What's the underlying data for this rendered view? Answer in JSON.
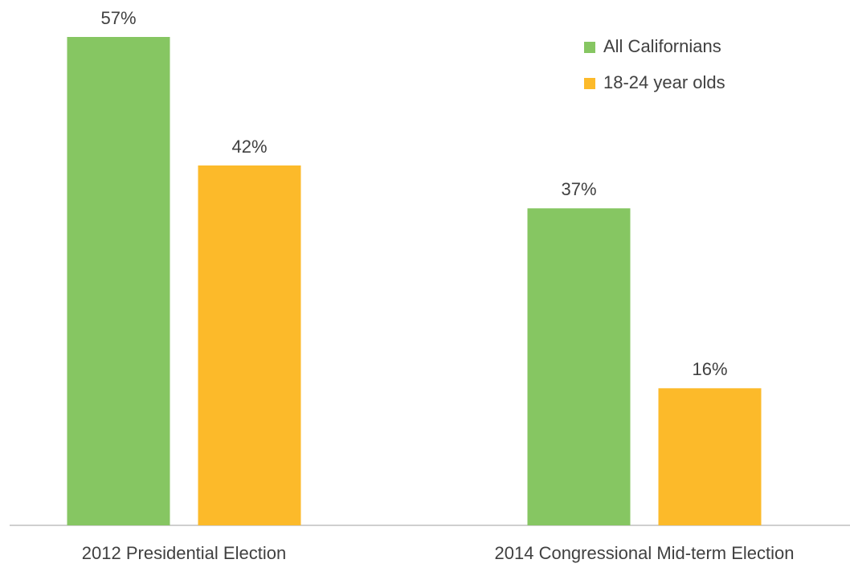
{
  "chart_data": {
    "type": "bar",
    "categories": [
      "2012 Presidential Election",
      "2014 Congressional Mid-term Election"
    ],
    "series": [
      {
        "name": "All Californians",
        "color": "#86c662",
        "values": [
          57,
          37
        ],
        "value_labels": [
          "57%",
          "37%"
        ]
      },
      {
        "name": "18-24 year olds",
        "color": "#fcba2a",
        "values": [
          42,
          16
        ],
        "value_labels": [
          "42%",
          "16%"
        ]
      }
    ],
    "legend": "upper right"
  }
}
